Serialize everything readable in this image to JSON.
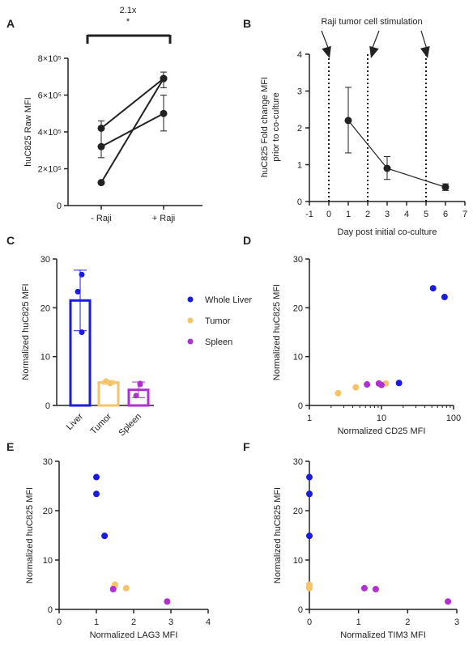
{
  "colors": {
    "axis": "#222222",
    "whole_liver": "#1a1ae0",
    "tumor": "#f5c46a",
    "spleen": "#b030d0"
  },
  "legend": [
    {
      "label": "Whole Liver",
      "color": "#1a1ae0"
    },
    {
      "label": "Tumor",
      "color": "#f5c46a"
    },
    {
      "label": "Spleen",
      "color": "#b030d0"
    }
  ],
  "chart_data": [
    {
      "panel": "A",
      "type": "scatter",
      "ylabel": "huC825 Raw MFI",
      "categories": [
        "- Raji",
        "+ Raji"
      ],
      "ylim": [
        0,
        800000
      ],
      "yticks": [
        {
          "v": 0,
          "t": "0"
        },
        {
          "v": 200000,
          "t": "2×10⁵"
        },
        {
          "v": 400000,
          "t": "4×10⁵"
        },
        {
          "v": 600000,
          "t": "6×10⁵"
        },
        {
          "v": 800000,
          "t": "8×10⁵"
        }
      ],
      "lines": [
        [
          420000,
          690000
        ],
        [
          320000,
          500000
        ],
        [
          125000,
          690000
        ]
      ],
      "errors": [
        {
          "x": 0,
          "lo": 260000,
          "hi": 460000
        },
        {
          "x": 1,
          "lo": 405000,
          "hi": 600000
        },
        {
          "x": 1,
          "lo": 640000,
          "hi": 725000
        }
      ],
      "annotation": {
        "fold": "2.1x",
        "sig": "*"
      }
    },
    {
      "panel": "B",
      "type": "line",
      "xlabel": "Day post initial co-culture",
      "ylabel": "huC825 Fold change MFI prior to co-culture",
      "xlim": [
        -1,
        7
      ],
      "ylim": [
        0,
        4
      ],
      "xticks": [
        -1,
        0,
        1,
        2,
        3,
        4,
        5,
        6,
        7
      ],
      "yticks": [
        0,
        1,
        2,
        3,
        4
      ],
      "points": [
        {
          "x": 1,
          "y": 2.2,
          "lo": 1.32,
          "hi": 3.1
        },
        {
          "x": 3,
          "y": 0.9,
          "lo": 0.6,
          "hi": 1.22
        },
        {
          "x": 6,
          "y": 0.39,
          "lo": 0.3,
          "hi": 0.48
        }
      ],
      "stim_days": [
        0,
        2,
        5
      ],
      "annotation": "Raji tumor cell stimulation"
    },
    {
      "panel": "C",
      "type": "bar",
      "ylabel": "Normalized huC825 MFI",
      "categories": [
        "Liver",
        "Tumor",
        "Spleen"
      ],
      "values": [
        21.5,
        4.7,
        3.2
      ],
      "errors": [
        [
          15.3,
          27.7
        ],
        [
          4.3,
          5.1
        ],
        [
          1.6,
          4.8
        ]
      ],
      "points": [
        [
          26.8,
          23.3,
          15.0
        ],
        [
          4.5,
          5.0,
          4.6
        ],
        [
          4.3,
          2.0,
          4.5
        ]
      ],
      "ylim": [
        0,
        30
      ],
      "yticks": [
        0,
        10,
        20,
        30
      ]
    },
    {
      "panel": "D",
      "type": "scatter",
      "xlabel": "Normalized CD25 MFI",
      "ylabel": "Normalized huC825 MFI",
      "xscale": "log",
      "xlim": [
        1,
        100
      ],
      "ylim": [
        0,
        30
      ],
      "xticks": [
        {
          "v": 1,
          "t": "1"
        },
        {
          "v": 10,
          "t": "10"
        },
        {
          "v": 100,
          "t": "100"
        }
      ],
      "yticks": [
        0,
        10,
        20,
        30
      ],
      "series": [
        {
          "group": "whole_liver",
          "points": [
            [
              52,
              24
            ],
            [
              75,
              22.2
            ],
            [
              17.5,
              4.6
            ]
          ]
        },
        {
          "group": "tumor",
          "points": [
            [
              2.5,
              2.5
            ],
            [
              4.4,
              3.7
            ],
            [
              11.5,
              4.5
            ]
          ]
        },
        {
          "group": "spleen",
          "points": [
            [
              6.3,
              4.3
            ],
            [
              9.2,
              4.5
            ],
            [
              10,
              4.2
            ]
          ]
        }
      ]
    },
    {
      "panel": "E",
      "type": "scatter",
      "xlabel": "Normalized LAG3 MFI",
      "ylabel": "Normalized huC825 MFI",
      "xlim": [
        0,
        4
      ],
      "ylim": [
        0,
        30
      ],
      "xticks": [
        0,
        1,
        2,
        3,
        4
      ],
      "yticks": [
        0,
        10,
        20,
        30
      ],
      "series": [
        {
          "group": "whole_liver",
          "points": [
            [
              1.0,
              26.8
            ],
            [
              1.0,
              23.4
            ],
            [
              1.22,
              14.9
            ]
          ]
        },
        {
          "group": "tumor",
          "points": [
            [
              1.5,
              5.0
            ],
            [
              1.48,
              4.6
            ],
            [
              1.8,
              4.3
            ]
          ]
        },
        {
          "group": "spleen",
          "points": [
            [
              1.45,
              4.1
            ],
            [
              2.9,
              1.6
            ]
          ]
        }
      ]
    },
    {
      "panel": "F",
      "type": "scatter",
      "xlabel": "Normalized TIM3 MFI",
      "ylabel": "Normalized huC825 MFI",
      "xlim": [
        0,
        3
      ],
      "ylim": [
        0,
        30
      ],
      "xticks": [
        0,
        1,
        2,
        3
      ],
      "yticks": [
        0,
        10,
        20,
        30
      ],
      "series": [
        {
          "group": "whole_liver",
          "points": [
            [
              0,
              26.8
            ],
            [
              0,
              23.4
            ],
            [
              0,
              14.9
            ]
          ]
        },
        {
          "group": "tumor",
          "points": [
            [
              0,
              5.0
            ],
            [
              0,
              4.6
            ],
            [
              0,
              4.3
            ]
          ]
        },
        {
          "group": "spleen",
          "points": [
            [
              1.12,
              4.3
            ],
            [
              1.35,
              4.1
            ],
            [
              2.82,
              1.6
            ]
          ]
        }
      ]
    }
  ]
}
